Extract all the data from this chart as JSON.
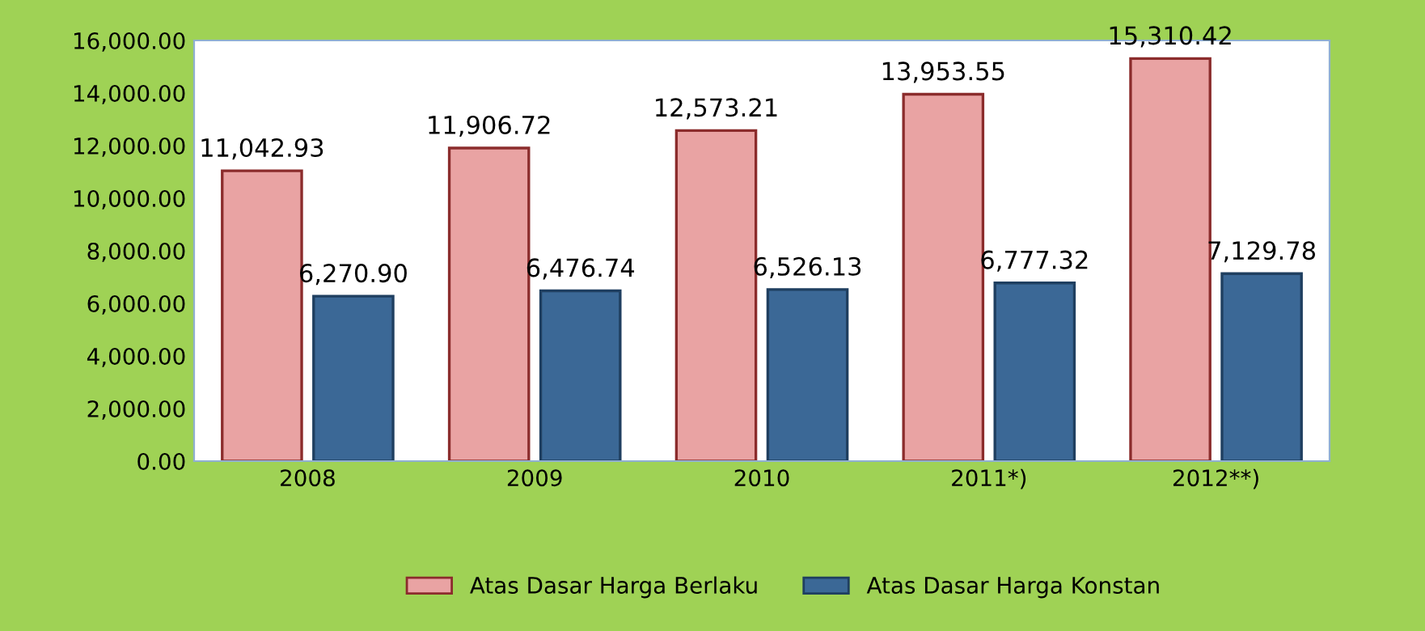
{
  "chart_data": {
    "type": "bar",
    "categories": [
      "2008",
      "2009",
      "2010",
      "2011*)",
      "2012**)"
    ],
    "series": [
      {
        "name": "Atas Dasar Harga Berlaku",
        "color": "#e9a3a3",
        "values": [
          11042.93,
          11906.72,
          12573.21,
          13953.55,
          15310.42
        ],
        "value_labels": [
          "11,042.93",
          "11,906.72",
          "12,573.21",
          "13,953.55",
          "15,310.42"
        ]
      },
      {
        "name": "Atas Dasar Harga Konstan",
        "color": "#3b6896",
        "values": [
          6270.9,
          6476.74,
          6526.13,
          6777.32,
          7129.78
        ],
        "value_labels": [
          "6,270.90",
          "6,476.74",
          "6,526.13",
          "6,777.32",
          "7,129.78"
        ]
      }
    ],
    "ylim": [
      0,
      16000
    ],
    "yticks": [
      {
        "value": 0,
        "label": "0.00"
      },
      {
        "value": 2000,
        "label": "2,000.00"
      },
      {
        "value": 4000,
        "label": "4,000.00"
      },
      {
        "value": 6000,
        "label": "6,000.00"
      },
      {
        "value": 8000,
        "label": "8,000.00"
      },
      {
        "value": 10000,
        "label": "10,000.00"
      },
      {
        "value": 12000,
        "label": "12,000.00"
      },
      {
        "value": 14000,
        "label": "14,000.00"
      },
      {
        "value": 16000,
        "label": "16,000.00"
      }
    ],
    "grid": false,
    "legend": "bottom"
  }
}
